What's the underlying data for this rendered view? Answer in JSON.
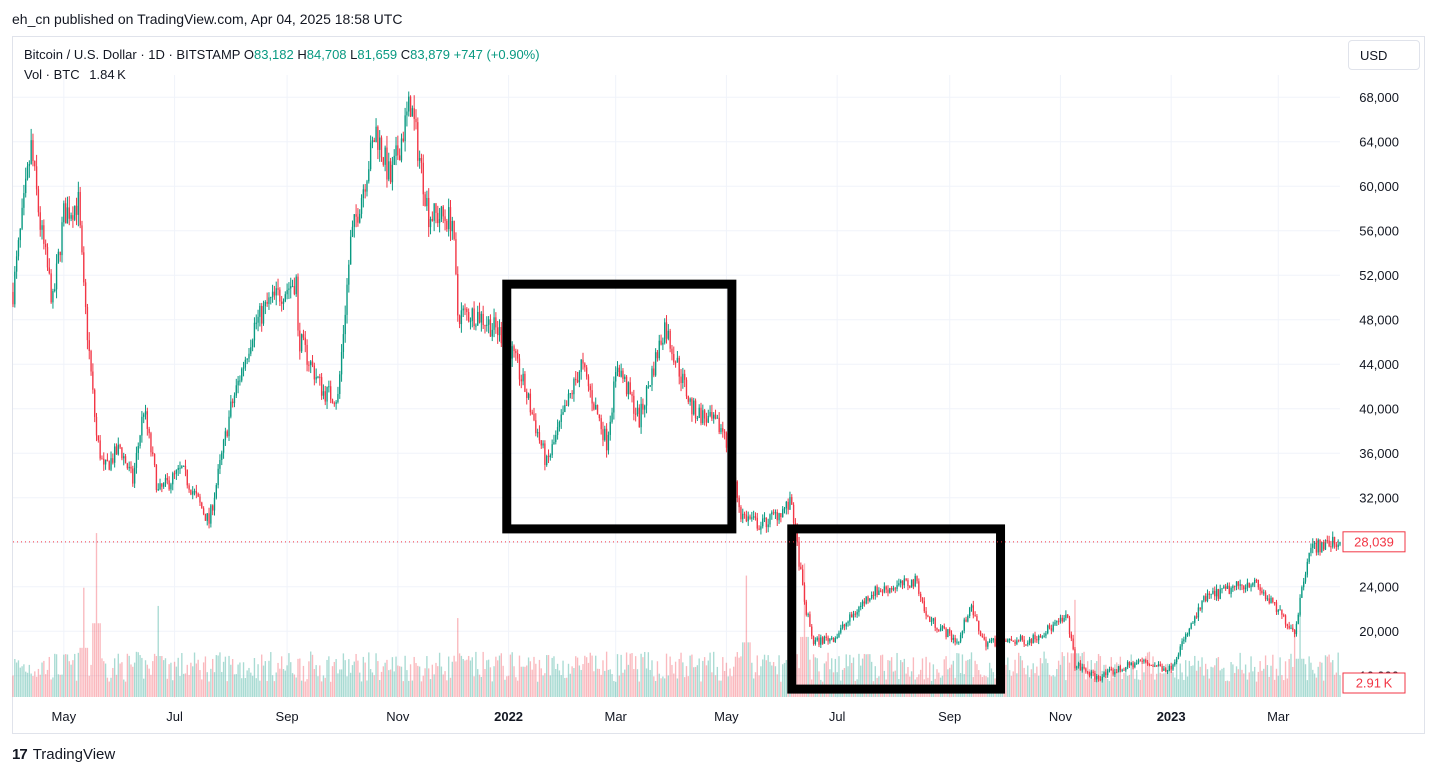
{
  "header": {
    "publisher": "eh_cn published on TradingView.com, Apr 04, 2025 18:58 UTC"
  },
  "legend": {
    "symbol": "Bitcoin / U.S. Dollar · 1D · BITSTAMP",
    "o_label": "O",
    "o_value": "83,182",
    "h_label": "H",
    "h_value": "84,708",
    "l_label": "L",
    "l_value": "81,659",
    "c_label": "C",
    "c_value": "83,879",
    "change": "+747 (+0.90%)",
    "vol_label": "Vol · BTC",
    "vol_value": "1.84 K"
  },
  "currency": "USD",
  "footer": {
    "logo_mark": "17",
    "logo_text": "TradingView"
  },
  "colors": {
    "up": "#089981",
    "down": "#f23645",
    "grid": "#f0f3fa",
    "text": "#131722",
    "box": "#000000"
  },
  "chart_data": {
    "type": "candlestick",
    "symbol": "BTCUSD",
    "interval": "1D",
    "ylim": [
      14000,
      70000
    ],
    "yticks": [
      16000,
      20000,
      24000,
      28000,
      32000,
      36000,
      40000,
      44000,
      48000,
      52000,
      56000,
      60000,
      64000,
      68000
    ],
    "ytick_labels": [
      "16,000",
      "20,000",
      "24,000",
      "28,000",
      "32,000",
      "36,000",
      "40,000",
      "44,000",
      "48,000",
      "52,000",
      "56,000",
      "60,000",
      "64,000",
      "68,000"
    ],
    "xlim": [
      "2021-04-03",
      "2023-04-04"
    ],
    "xticks": [
      {
        "date": "2021-05-01",
        "label": "May",
        "bold": false
      },
      {
        "date": "2021-07-01",
        "label": "Jul",
        "bold": false
      },
      {
        "date": "2021-09-01",
        "label": "Sep",
        "bold": false
      },
      {
        "date": "2021-11-01",
        "label": "Nov",
        "bold": false
      },
      {
        "date": "2022-01-01",
        "label": "2022",
        "bold": true
      },
      {
        "date": "2022-03-01",
        "label": "Mar",
        "bold": false
      },
      {
        "date": "2022-05-01",
        "label": "May",
        "bold": false
      },
      {
        "date": "2022-07-01",
        "label": "Jul",
        "bold": false
      },
      {
        "date": "2022-09-01",
        "label": "Sep",
        "bold": false
      },
      {
        "date": "2022-11-01",
        "label": "Nov",
        "bold": false
      },
      {
        "date": "2023-01-01",
        "label": "2023",
        "bold": true
      },
      {
        "date": "2023-03-01",
        "label": "Mar",
        "bold": false
      }
    ],
    "price_path": [
      [
        "2021-04-03",
        50500
      ],
      [
        "2021-04-13",
        63500
      ],
      [
        "2021-04-18",
        56500
      ],
      [
        "2021-04-25",
        49500
      ],
      [
        "2021-05-01",
        57500
      ],
      [
        "2021-05-09",
        58500
      ],
      [
        "2021-05-12",
        50500
      ],
      [
        "2021-05-19",
        37500
      ],
      [
        "2021-05-23",
        34500
      ],
      [
        "2021-06-01",
        36500
      ],
      [
        "2021-06-08",
        33500
      ],
      [
        "2021-06-14",
        40000
      ],
      [
        "2021-06-22",
        32500
      ],
      [
        "2021-07-05",
        34500
      ],
      [
        "2021-07-20",
        29800
      ],
      [
        "2021-08-01",
        40000
      ],
      [
        "2021-08-14",
        47500
      ],
      [
        "2021-08-22",
        49500
      ],
      [
        "2021-09-06",
        51500
      ],
      [
        "2021-09-07",
        46500
      ],
      [
        "2021-09-21",
        41500
      ],
      [
        "2021-09-29",
        41000
      ],
      [
        "2021-10-06",
        55000
      ],
      [
        "2021-10-20",
        65000
      ],
      [
        "2021-10-28",
        60500
      ],
      [
        "2021-11-08",
        67500
      ],
      [
        "2021-11-18",
        57500
      ],
      [
        "2021-12-01",
        57000
      ],
      [
        "2021-12-04",
        48500
      ],
      [
        "2021-12-15",
        48500
      ],
      [
        "2021-12-31",
        46300
      ],
      [
        "2022-01-10",
        41800
      ],
      [
        "2022-01-22",
        35000
      ],
      [
        "2022-02-10",
        44000
      ],
      [
        "2022-02-24",
        37000
      ],
      [
        "2022-03-02",
        44000
      ],
      [
        "2022-03-14",
        39000
      ],
      [
        "2022-03-28",
        47500
      ],
      [
        "2022-04-12",
        40000
      ],
      [
        "2022-04-30",
        38000
      ],
      [
        "2022-05-09",
        30500
      ],
      [
        "2022-05-20",
        29500
      ],
      [
        "2022-06-06",
        31500
      ],
      [
        "2022-06-13",
        22500
      ],
      [
        "2022-06-18",
        19000
      ],
      [
        "2022-06-30",
        19500
      ],
      [
        "2022-07-20",
        23500
      ],
      [
        "2022-08-14",
        24500
      ],
      [
        "2022-08-19",
        21300
      ],
      [
        "2022-09-06",
        19000
      ],
      [
        "2022-09-12",
        22300
      ],
      [
        "2022-09-20",
        19000
      ],
      [
        "2022-10-15",
        19200
      ],
      [
        "2022-11-05",
        21200
      ],
      [
        "2022-11-09",
        17000
      ],
      [
        "2022-11-21",
        15800
      ],
      [
        "2022-12-15",
        17300
      ],
      [
        "2022-12-31",
        16600
      ],
      [
        "2023-01-20",
        23000
      ],
      [
        "2023-02-15",
        24500
      ],
      [
        "2023-03-10",
        20000
      ],
      [
        "2023-03-18",
        27500
      ],
      [
        "2023-04-04",
        28039
      ]
    ],
    "last_price": 28039,
    "last_price_label": "28,039",
    "volume": {
      "ylim": [
        0,
        28000
      ],
      "spikes": [
        [
          "2021-05-19",
          27000
        ],
        [
          "2021-06-22",
          15000
        ],
        [
          "2021-05-12",
          18000
        ],
        [
          "2021-12-04",
          13000
        ],
        [
          "2022-05-12",
          20000
        ],
        [
          "2022-06-13",
          22000
        ],
        [
          "2022-11-09",
          16000
        ],
        [
          "2023-03-10",
          11000
        ],
        [
          "2023-03-13",
          14000
        ]
      ],
      "last_label": "2.91 K"
    },
    "annotations": [
      {
        "type": "rectangle",
        "x": [
          "2021-12-31",
          "2022-05-04"
        ],
        "y": [
          29200,
          51200
        ]
      },
      {
        "type": "rectangle",
        "x": [
          "2022-06-06",
          "2022-09-29"
        ],
        "y": [
          14800,
          29200
        ]
      }
    ]
  }
}
